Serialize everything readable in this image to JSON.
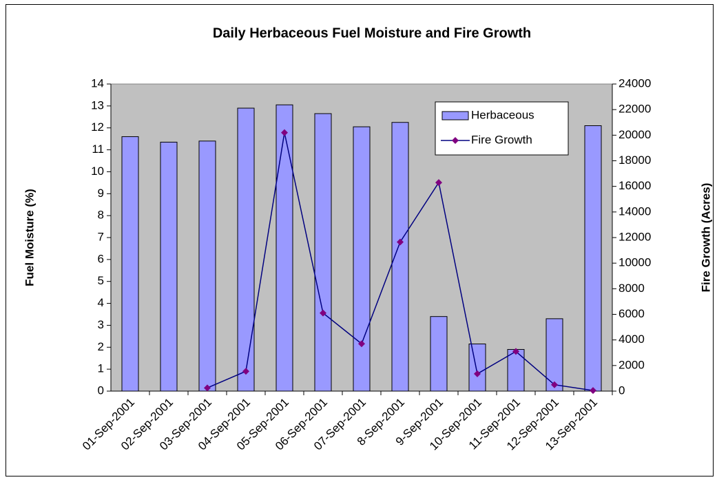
{
  "chart_data": {
    "type": "bar_line",
    "title": "Daily Herbaceous Fuel Moisture and Fire Growth",
    "y_label": "Fuel Moisture (%)",
    "y2_label": "Fire Growth (Acres)",
    "categories": [
      "01-Sep-2001",
      "02-Sep-2001",
      "03-Sep-2001",
      "04-Sep-2001",
      "05-Sep-2001",
      "06-Sep-2001",
      "07-Sep-2001",
      "8-Sep-2001",
      "9-Sep-2001",
      "10-Sep-2001",
      "11-Sep-2001",
      "12-Sep-2001",
      "13-Sep-2001"
    ],
    "series": [
      {
        "name": "Herbaceous",
        "type": "bar",
        "color": "#9999ff",
        "values": [
          11.6,
          11.35,
          11.4,
          12.9,
          13.05,
          12.65,
          12.05,
          12.25,
          3.4,
          2.15,
          1.9,
          3.3,
          12.1
        ]
      },
      {
        "name": "Fire Growth",
        "type": "line",
        "axis": "y2",
        "color": "#000080",
        "marker_color": "#800080",
        "values": [
          null,
          null,
          250,
          1550,
          20200,
          6100,
          3700,
          11650,
          16300,
          1350,
          3100,
          500,
          50
        ]
      }
    ],
    "ylim": [
      0,
      14
    ],
    "yticks": [
      0,
      1,
      2,
      3,
      4,
      5,
      6,
      7,
      8,
      9,
      10,
      11,
      12,
      13,
      14
    ],
    "y2lim": [
      0,
      24000
    ],
    "y2ticks": [
      0,
      2000,
      4000,
      6000,
      8000,
      10000,
      12000,
      14000,
      16000,
      18000,
      20000,
      22000,
      24000
    ],
    "legend": "upper right",
    "plot_background": "#c0c0c0"
  }
}
